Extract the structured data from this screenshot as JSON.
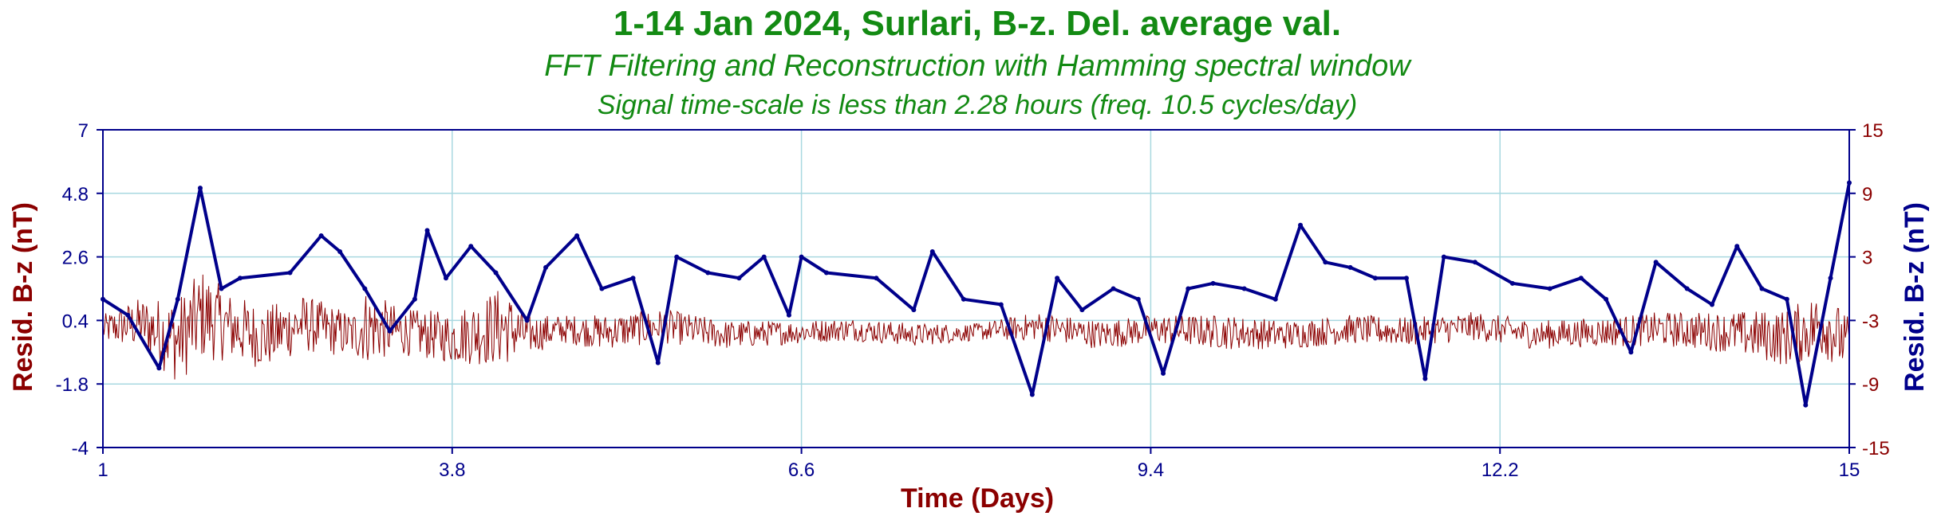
{
  "chart_data": {
    "type": "line",
    "title": "1-14 Jan 2024, Surlari, B-z. Del. average val.",
    "subtitle": "FFT Filtering and Reconstruction with Hamming spectral window",
    "subtitle2": "Signal time-scale is less than 2.28 hours (freq. 10.5 cycles/day)",
    "xlabel": "Time (Days)",
    "ylabel_left": "Resid. B-z (nT)",
    "ylabel_right": "Resid. B-z (nT)",
    "xlim": [
      1,
      15
    ],
    "ylim_left": [
      -4,
      7
    ],
    "ylim_right": [
      -15,
      15
    ],
    "x_ticks": [
      "1",
      "3.8",
      "6.6",
      "9.4",
      "12.2",
      "15"
    ],
    "y_ticks_left": [
      "7",
      "4.8",
      "2.6",
      "0.4",
      "-1.8",
      "-4"
    ],
    "y_ticks_right": [
      "15",
      "9",
      "3",
      "-3",
      "-9",
      "-15"
    ],
    "grid": true,
    "colors": {
      "title": "#138a13",
      "left_axis": "#8b0000",
      "right_axis": "#00008b",
      "grid": "#a8d8e0",
      "frame": "#00008b"
    },
    "series": [
      {
        "axis": "left",
        "color": "#8b0000",
        "x": [
          1.0,
          1.3,
          1.6,
          1.8,
          2.0,
          2.3,
          2.6,
          3.0,
          3.1,
          3.4,
          3.8,
          4.2,
          4.4,
          4.7,
          5.0,
          5.5,
          6.0,
          6.6,
          7.0,
          7.5,
          8.0,
          8.5,
          9.0,
          9.4,
          10.0,
          10.5,
          11.0,
          11.5,
          12.0,
          12.5,
          13.0,
          13.5,
          14.0,
          14.5,
          14.8,
          15.0
        ],
        "y": [
          0.1,
          0.3,
          -0.3,
          0.6,
          0.2,
          -0.2,
          0.3,
          -0.1,
          0.2,
          0.0,
          -0.2,
          0.2,
          -0.1,
          0.1,
          0.0,
          0.2,
          -0.1,
          0.0,
          0.1,
          -0.1,
          0.0,
          0.2,
          -0.1,
          0.1,
          0.0,
          -0.1,
          0.1,
          0.0,
          0.2,
          -0.1,
          0.0,
          0.1,
          0.0,
          -0.2,
          0.3,
          -0.5
        ],
        "amplitude": [
          0.5,
          0.9,
          1.5,
          1.6,
          1.2,
          1.1,
          1.0,
          0.8,
          1.3,
          0.8,
          0.9,
          1.4,
          0.7,
          0.5,
          0.6,
          0.6,
          0.5,
          0.4,
          0.4,
          0.4,
          0.3,
          0.5,
          0.5,
          0.5,
          0.6,
          0.5,
          0.5,
          0.5,
          0.5,
          0.5,
          0.5,
          0.6,
          0.7,
          1.0,
          1.2,
          1.0
        ]
      },
      {
        "axis": "right",
        "color": "#00008b",
        "x": [
          1.0,
          1.2,
          1.45,
          1.6,
          1.78,
          1.95,
          2.1,
          2.5,
          2.75,
          2.9,
          3.1,
          3.3,
          3.5,
          3.6,
          3.75,
          3.95,
          4.15,
          4.4,
          4.55,
          4.8,
          5.0,
          5.25,
          5.45,
          5.6,
          5.85,
          6.1,
          6.3,
          6.5,
          6.6,
          6.8,
          7.2,
          7.5,
          7.65,
          7.9,
          8.2,
          8.45,
          8.65,
          8.85,
          9.1,
          9.3,
          9.5,
          9.7,
          9.9,
          10.15,
          10.4,
          10.6,
          10.8,
          11.0,
          11.2,
          11.45,
          11.6,
          11.75,
          12.0,
          12.3,
          12.6,
          12.85,
          13.05,
          13.25,
          13.45,
          13.7,
          13.9,
          14.1,
          14.3,
          14.5,
          14.65,
          14.85,
          15.0
        ],
        "y": [
          -1,
          -2.5,
          -7.5,
          -1,
          9.5,
          0,
          1.0,
          1.5,
          5,
          3.5,
          0,
          -4,
          -1,
          5.5,
          1,
          4,
          1.5,
          -3,
          2,
          5,
          0,
          1,
          -7,
          3,
          1.5,
          1,
          3,
          -2.5,
          3,
          1.5,
          1,
          -2,
          3.5,
          -1,
          -1.5,
          -10,
          1,
          -2,
          0,
          -1,
          -8,
          0,
          0.5,
          0,
          -1,
          6,
          2.5,
          2,
          1,
          1,
          -8.5,
          3,
          2.5,
          0.5,
          0,
          1,
          -1,
          -6,
          2.5,
          0,
          -1.5,
          4,
          0,
          -1,
          -11,
          1,
          10
        ]
      }
    ]
  }
}
